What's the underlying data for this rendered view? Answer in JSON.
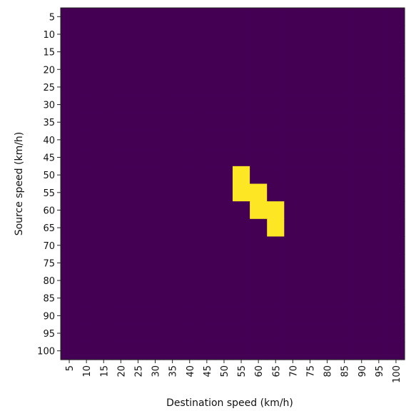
{
  "chart_data": {
    "type": "heatmap",
    "title": "",
    "xlabel": "Destination speed (km/h)",
    "ylabel": "Source speed (km/h)",
    "x_categories": [
      "5",
      "10",
      "15",
      "20",
      "25",
      "30",
      "35",
      "40",
      "45",
      "50",
      "55",
      "60",
      "65",
      "70",
      "75",
      "80",
      "85",
      "90",
      "95",
      "100"
    ],
    "y_categories": [
      "5",
      "10",
      "15",
      "20",
      "25",
      "30",
      "35",
      "40",
      "45",
      "50",
      "55",
      "60",
      "65",
      "70",
      "75",
      "80",
      "85",
      "90",
      "95",
      "100"
    ],
    "values": [
      [
        0,
        0,
        0,
        0,
        0,
        0,
        0,
        0,
        0,
        0,
        0,
        0,
        0,
        0,
        0,
        0,
        0,
        0,
        0,
        0
      ],
      [
        0,
        0,
        0,
        0,
        0,
        0,
        0,
        0,
        0,
        0,
        0,
        0,
        0,
        0,
        0,
        0,
        0,
        0,
        0,
        0
      ],
      [
        0,
        0,
        0,
        0,
        0,
        0,
        0,
        0,
        0,
        0,
        0,
        0,
        0,
        0,
        0,
        0,
        0,
        0,
        0,
        0
      ],
      [
        0,
        0,
        0,
        0,
        0,
        0,
        0,
        0,
        0,
        0,
        0,
        0,
        0,
        0,
        0,
        0,
        0,
        0,
        0,
        0
      ],
      [
        0,
        0,
        0,
        0,
        0,
        0,
        0,
        0,
        0,
        0,
        0,
        0,
        0,
        0,
        0,
        0,
        0,
        0,
        0,
        0
      ],
      [
        0,
        0,
        0,
        0,
        0,
        0,
        0,
        0,
        0,
        0,
        0,
        0,
        0,
        0,
        0,
        0,
        0,
        0,
        0,
        0
      ],
      [
        0,
        0,
        0,
        0,
        0,
        0,
        0,
        0,
        0,
        0,
        0,
        0,
        0,
        0,
        0,
        0,
        0,
        0,
        0,
        0
      ],
      [
        0,
        0,
        0,
        0,
        0,
        0,
        0,
        0,
        0,
        0,
        0,
        0,
        0,
        0,
        0,
        0,
        0,
        0,
        0,
        0
      ],
      [
        0,
        0,
        0,
        0,
        0,
        0,
        0,
        0,
        0,
        0,
        0,
        0,
        0,
        0,
        0,
        0,
        0,
        0,
        0,
        0
      ],
      [
        0,
        0,
        0,
        0,
        0,
        0,
        0,
        0,
        0,
        0,
        1,
        0,
        0,
        0,
        0,
        0,
        0,
        0,
        0,
        0
      ],
      [
        0,
        0,
        0,
        0,
        0,
        0,
        0,
        0,
        0,
        0,
        1,
        1,
        0,
        0,
        0,
        0,
        0,
        0,
        0,
        0
      ],
      [
        0,
        0,
        0,
        0,
        0,
        0,
        0,
        0,
        0,
        0,
        0,
        1,
        1,
        0,
        0,
        0,
        0,
        0,
        0,
        0
      ],
      [
        0,
        0,
        0,
        0,
        0,
        0,
        0,
        0,
        0,
        0,
        0,
        0,
        1,
        0,
        0,
        0,
        0,
        0,
        0,
        0
      ],
      [
        0,
        0,
        0,
        0,
        0,
        0,
        0,
        0,
        0,
        0,
        0,
        0,
        0,
        0,
        0,
        0,
        0,
        0,
        0,
        0
      ],
      [
        0,
        0,
        0,
        0,
        0,
        0,
        0,
        0,
        0,
        0,
        0,
        0,
        0,
        0,
        0,
        0,
        0,
        0,
        0,
        0
      ],
      [
        0,
        0,
        0,
        0,
        0,
        0,
        0,
        0,
        0,
        0,
        0,
        0,
        0,
        0,
        0,
        0,
        0,
        0,
        0,
        0
      ],
      [
        0,
        0,
        0,
        0,
        0,
        0,
        0,
        0,
        0,
        0,
        0,
        0,
        0,
        0,
        0,
        0,
        0,
        0,
        0,
        0
      ],
      [
        0,
        0,
        0,
        0,
        0,
        0,
        0,
        0,
        0,
        0,
        0,
        0,
        0,
        0,
        0,
        0,
        0,
        0,
        0,
        0
      ],
      [
        0,
        0,
        0,
        0,
        0,
        0,
        0,
        0,
        0,
        0,
        0,
        0,
        0,
        0,
        0,
        0,
        0,
        0,
        0,
        0
      ],
      [
        0,
        0,
        0,
        0,
        0,
        0,
        0,
        0,
        0,
        0,
        0,
        0,
        0,
        0,
        0,
        0,
        0,
        0,
        0,
        0
      ]
    ],
    "colors": {
      "low": "#440154",
      "high": "#fde725"
    },
    "grid": false,
    "legend": "none"
  }
}
